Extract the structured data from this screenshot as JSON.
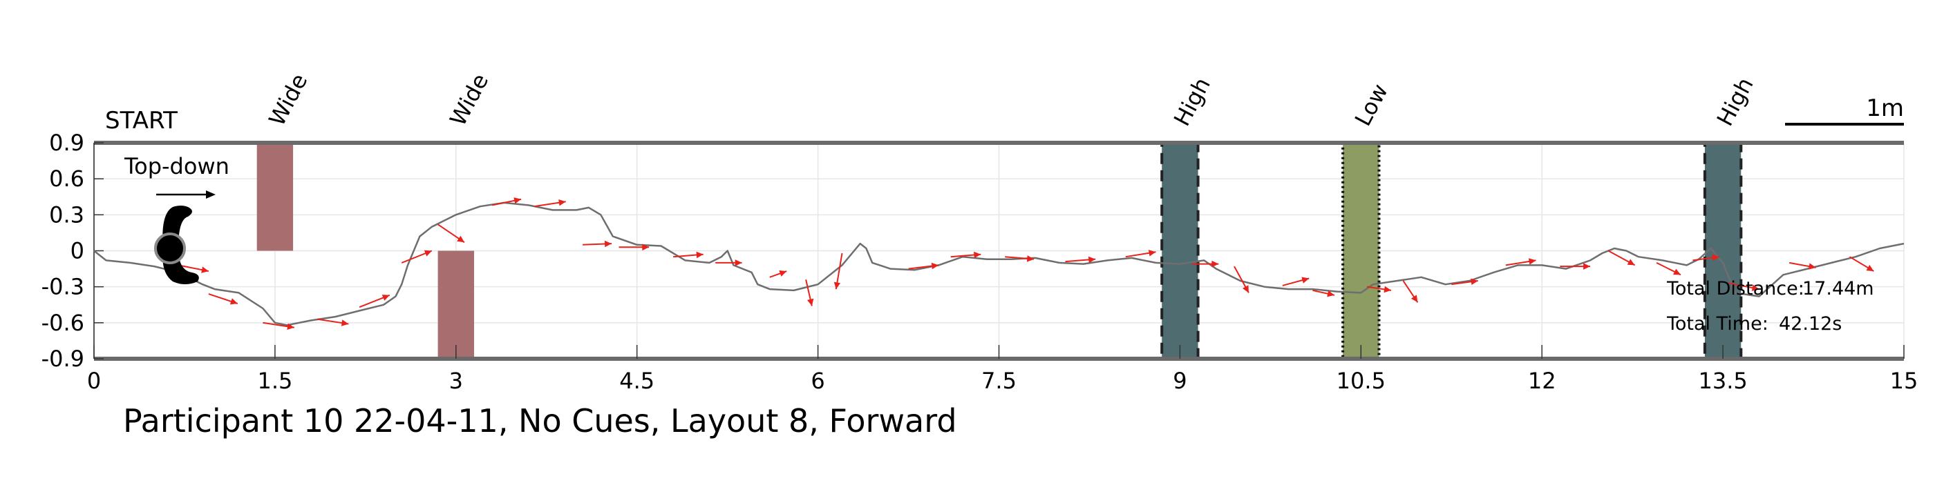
{
  "chart_data": {
    "type": "line",
    "title": "Participant 10 22-04-11, No Cues, Layout 8, Forward",
    "start_label": "START",
    "inset_label": "Top-down",
    "scale_label": "1m",
    "xlim": [
      0,
      15
    ],
    "ylim": [
      -0.9,
      0.9
    ],
    "x_ticks": [
      0,
      1.5,
      3,
      4.5,
      6,
      7.5,
      9,
      10.5,
      12,
      13.5,
      15
    ],
    "x_tick_labels": [
      "0",
      "1.5",
      "3",
      "4.5",
      "6",
      "7.5",
      "9",
      "10.5",
      "12",
      "13.5",
      "15"
    ],
    "y_ticks": [
      0.9,
      0.6,
      0.3,
      0,
      -0.3,
      -0.6,
      -0.9
    ],
    "y_tick_labels": [
      "0.9",
      "0.6",
      "0.3",
      "0",
      "-0.3",
      "-0.6",
      "-0.9"
    ],
    "grid": true,
    "obstacles": [
      {
        "label": "Wide",
        "x": [
          1.35,
          1.65
        ],
        "y": [
          0,
          0.9
        ],
        "kind": "wide",
        "color": "#a86d6f"
      },
      {
        "label": "Wide",
        "x": [
          2.85,
          3.15
        ],
        "y": [
          -0.9,
          0
        ],
        "kind": "wide",
        "color": "#a86d6f"
      },
      {
        "label": "High",
        "x": [
          8.85,
          9.15
        ],
        "y": [
          -0.9,
          0.9
        ],
        "kind": "high",
        "color": "#4f6d70"
      },
      {
        "label": "Low",
        "x": [
          10.35,
          10.65
        ],
        "y": [
          -0.9,
          0.9
        ],
        "kind": "low",
        "color": "#8c9c62"
      },
      {
        "label": "High",
        "x": [
          13.35,
          13.65
        ],
        "y": [
          -0.9,
          0.9
        ],
        "kind": "high",
        "color": "#4f6d70"
      }
    ],
    "path": {
      "color": "#6e6e6e",
      "x": [
        0,
        0.1,
        0.3,
        0.5,
        0.7,
        0.9,
        1.0,
        1.2,
        1.4,
        1.5,
        1.6,
        1.8,
        2.0,
        2.2,
        2.4,
        2.5,
        2.55,
        2.6,
        2.7,
        2.8,
        3.0,
        3.2,
        3.4,
        3.6,
        3.8,
        4.0,
        4.1,
        4.2,
        4.3,
        4.5,
        4.7,
        4.9,
        5.1,
        5.2,
        5.25,
        5.3,
        5.45,
        5.5,
        5.6,
        5.8,
        6.0,
        6.2,
        6.3,
        6.35,
        6.4,
        6.45,
        6.6,
        6.8,
        7.0,
        7.2,
        7.4,
        7.6,
        7.8,
        8.0,
        8.2,
        8.4,
        8.6,
        8.8,
        9.0,
        9.2,
        9.3,
        9.4,
        9.5,
        9.7,
        9.9,
        10.1,
        10.3,
        10.5,
        10.6,
        10.8,
        11.0,
        11.2,
        11.4,
        11.6,
        11.8,
        12.0,
        12.2,
        12.4,
        12.5,
        12.6,
        12.7,
        12.8,
        13.0,
        13.2,
        13.3,
        13.4,
        13.5,
        13.6,
        13.8,
        14.0,
        14.2,
        14.4,
        14.6,
        14.8,
        15.0
      ],
      "y": [
        0,
        -0.08,
        -0.1,
        -0.13,
        -0.18,
        -0.28,
        -0.32,
        -0.35,
        -0.48,
        -0.6,
        -0.62,
        -0.58,
        -0.55,
        -0.5,
        -0.45,
        -0.38,
        -0.28,
        -0.12,
        0.12,
        0.2,
        0.3,
        0.37,
        0.4,
        0.38,
        0.34,
        0.34,
        0.36,
        0.3,
        0.12,
        0.05,
        0.04,
        -0.08,
        -0.1,
        -0.05,
        0.0,
        -0.12,
        -0.18,
        -0.28,
        -0.32,
        -0.33,
        -0.28,
        -0.12,
        0.0,
        0.06,
        0.02,
        -0.1,
        -0.15,
        -0.16,
        -0.12,
        -0.05,
        -0.07,
        -0.07,
        -0.06,
        -0.1,
        -0.11,
        -0.08,
        -0.06,
        -0.1,
        -0.11,
        -0.08,
        -0.15,
        -0.2,
        -0.25,
        -0.3,
        -0.32,
        -0.32,
        -0.34,
        -0.35,
        -0.28,
        -0.25,
        -0.22,
        -0.28,
        -0.25,
        -0.18,
        -0.12,
        -0.12,
        -0.15,
        -0.08,
        -0.02,
        0.02,
        0.0,
        -0.05,
        -0.08,
        -0.12,
        -0.07,
        0.02,
        -0.1,
        -0.35,
        -0.38,
        -0.2,
        -0.15,
        -0.1,
        -0.05,
        0.02,
        0.06
      ]
    },
    "heading_arrows": {
      "color": "#e8211b",
      "x": [
        0.7,
        0.95,
        1.4,
        1.85,
        2.2,
        2.55,
        2.85,
        3.3,
        3.65,
        4.05,
        4.35,
        4.8,
        5.15,
        5.6,
        5.9,
        6.2,
        6.75,
        7.1,
        7.55,
        8.05,
        8.55,
        9.1,
        9.45,
        9.85,
        10.1,
        10.55,
        10.85,
        11.25,
        11.7,
        12.15,
        12.55,
        12.95,
        13.25,
        13.55,
        14.05,
        14.55
      ],
      "y": [
        -0.12,
        -0.36,
        -0.6,
        -0.57,
        -0.47,
        -0.1,
        0.22,
        0.38,
        0.37,
        0.05,
        0.03,
        -0.05,
        -0.1,
        -0.22,
        -0.24,
        -0.02,
        -0.15,
        -0.05,
        -0.05,
        -0.09,
        -0.05,
        -0.11,
        -0.13,
        -0.29,
        -0.33,
        -0.3,
        -0.25,
        -0.28,
        -0.12,
        -0.13,
        0.0,
        -0.1,
        -0.08,
        -0.27,
        -0.1,
        -0.05
      ],
      "dx": [
        0.25,
        0.24,
        0.26,
        0.26,
        0.25,
        0.25,
        0.22,
        0.24,
        0.26,
        0.24,
        0.25,
        0.25,
        0.22,
        0.14,
        0.05,
        -0.05,
        0.25,
        0.25,
        0.24,
        0.25,
        0.25,
        0.22,
        0.12,
        0.22,
        0.18,
        0.2,
        0.12,
        0.22,
        0.25,
        0.25,
        0.22,
        0.2,
        0.22,
        0.25,
        0.22,
        0.2
      ],
      "dy": [
        -0.05,
        -0.08,
        -0.04,
        -0.04,
        0.1,
        0.1,
        -0.15,
        0.05,
        0.04,
        0.01,
        0.0,
        0.02,
        0.0,
        0.05,
        -0.22,
        -0.3,
        0.03,
        0.02,
        -0.02,
        0.02,
        0.04,
        0.0,
        -0.22,
        0.06,
        -0.04,
        -0.03,
        -0.18,
        0.03,
        0.04,
        0.0,
        -0.12,
        -0.1,
        0.03,
        -0.05,
        -0.04,
        -0.12
      ]
    },
    "stats": [
      {
        "label": "Total Distance:",
        "value": "17.44m"
      },
      {
        "label": "Total Time:",
        "value": "42.12s"
      }
    ]
  }
}
